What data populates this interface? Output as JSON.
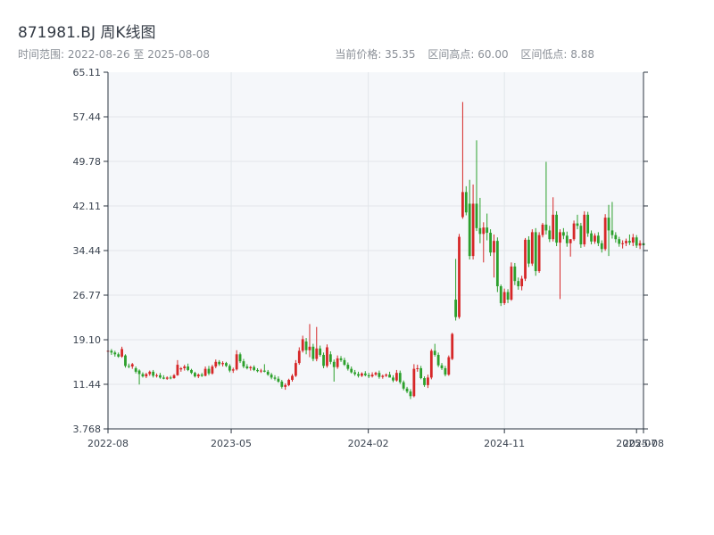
{
  "header": {
    "title": "871981.BJ 周K线图",
    "subtitle": "时间范围: 2022-08-26 至 2025-08-08",
    "current_price": "当前价格: 35.35",
    "range_high": "区间高点: 60.00",
    "range_low": "区间低点: 8.88"
  },
  "colors": {
    "up": "#d62728",
    "down": "#2ca02c",
    "plot_bg": "#f5f7fa",
    "grid": "#e2e6ea",
    "axis": "#2b3440"
  },
  "chart_data": {
    "type": "candlestick",
    "title": "871981.BJ 周K线图",
    "grid": true,
    "y_ticks": [
      "3.768",
      "11.44",
      "19.10",
      "26.77",
      "34.44",
      "42.11",
      "49.78",
      "57.44",
      "65.11"
    ],
    "ylim": [
      3.768,
      65.11
    ],
    "x_ticks": [
      "2022-08",
      "2023-05",
      "2024-02",
      "2024-11",
      "2025-07",
      "2025-08"
    ],
    "xlim": [
      "2022-08-26",
      "2025-08-08"
    ],
    "x_tick_dates": [
      "2022-08-26",
      "2023-05-01",
      "2024-02-01",
      "2024-11-01",
      "2025-07-25",
      "2025-08-08"
    ],
    "candles": [
      [
        "2022-08-26",
        17.2,
        17.6,
        16.8,
        17.2
      ],
      [
        "2022-09-02",
        17.2,
        17.5,
        16.5,
        16.9
      ],
      [
        "2022-09-09",
        16.9,
        17.2,
        16.2,
        16.6
      ],
      [
        "2022-09-16",
        16.6,
        16.9,
        16.0,
        16.2
      ],
      [
        "2022-09-23",
        16.2,
        17.9,
        16.0,
        17.5
      ],
      [
        "2022-09-30",
        16.4,
        16.6,
        14.3,
        14.6
      ],
      [
        "2022-10-07",
        14.6,
        15.0,
        14.2,
        14.5
      ],
      [
        "2022-10-14",
        14.5,
        15.1,
        14.1,
        14.9
      ],
      [
        "2022-10-21",
        14.2,
        14.5,
        13.3,
        13.6
      ],
      [
        "2022-10-28",
        13.8,
        14.0,
        11.4,
        13.2
      ],
      [
        "2022-11-04",
        13.2,
        13.5,
        12.6,
        12.8
      ],
      [
        "2022-11-11",
        12.8,
        13.4,
        12.5,
        13.2
      ],
      [
        "2022-11-18",
        13.2,
        13.8,
        12.9,
        13.6
      ],
      [
        "2022-11-25",
        13.6,
        13.9,
        12.6,
        12.9
      ],
      [
        "2022-12-02",
        12.9,
        13.3,
        12.6,
        13.0
      ],
      [
        "2022-12-09",
        13.0,
        13.4,
        12.4,
        12.6
      ],
      [
        "2022-12-16",
        12.6,
        13.0,
        12.3,
        12.4
      ],
      [
        "2022-12-23",
        12.4,
        12.8,
        12.2,
        12.6
      ],
      [
        "2022-12-30",
        12.6,
        12.9,
        12.3,
        12.5
      ],
      [
        "2023-01-06",
        12.5,
        13.2,
        12.4,
        13.0
      ],
      [
        "2023-01-13",
        13.0,
        15.6,
        12.9,
        14.8
      ],
      [
        "2023-01-20",
        14.0,
        14.4,
        13.6,
        14.2
      ],
      [
        "2023-01-27",
        14.2,
        14.8,
        13.8,
        14.5
      ],
      [
        "2023-02-03",
        14.5,
        15.0,
        13.7,
        13.9
      ],
      [
        "2023-02-10",
        13.9,
        14.1,
        13.2,
        13.4
      ],
      [
        "2023-02-17",
        13.4,
        13.6,
        12.6,
        12.8
      ],
      [
        "2023-02-24",
        12.8,
        13.3,
        12.5,
        13.1
      ],
      [
        "2023-03-03",
        13.1,
        13.4,
        12.7,
        12.9
      ],
      [
        "2023-03-10",
        12.9,
        14.5,
        12.8,
        14.1
      ],
      [
        "2023-03-17",
        14.1,
        14.6,
        13.0,
        13.3
      ],
      [
        "2023-03-24",
        13.3,
        14.8,
        13.1,
        14.5
      ],
      [
        "2023-03-31",
        14.5,
        15.7,
        14.2,
        15.3
      ],
      [
        "2023-04-07",
        15.3,
        15.6,
        14.6,
        14.9
      ],
      [
        "2023-04-14",
        14.9,
        15.4,
        14.5,
        15.1
      ],
      [
        "2023-04-21",
        15.1,
        15.3,
        14.4,
        14.6
      ],
      [
        "2023-04-28",
        14.6,
        14.9,
        13.5,
        13.8
      ],
      [
        "2023-05-05",
        13.8,
        14.3,
        13.4,
        14.0
      ],
      [
        "2023-05-12",
        14.0,
        17.3,
        13.8,
        16.6
      ],
      [
        "2023-05-19",
        16.6,
        16.9,
        15.1,
        15.4
      ],
      [
        "2023-05-26",
        15.4,
        15.8,
        14.2,
        14.5
      ],
      [
        "2023-06-02",
        14.5,
        14.9,
        14.0,
        14.2
      ],
      [
        "2023-06-09",
        14.2,
        14.6,
        13.8,
        14.4
      ],
      [
        "2023-06-16",
        14.4,
        14.7,
        13.7,
        13.9
      ],
      [
        "2023-06-23",
        13.9,
        14.2,
        13.5,
        13.7
      ],
      [
        "2023-06-30",
        13.7,
        14.1,
        13.4,
        13.8
      ],
      [
        "2023-07-07",
        13.8,
        14.9,
        13.5,
        13.6
      ],
      [
        "2023-07-14",
        13.6,
        13.9,
        12.9,
        13.1
      ],
      [
        "2023-07-21",
        13.1,
        13.4,
        12.3,
        12.6
      ],
      [
        "2023-07-28",
        12.6,
        13.0,
        12.1,
        12.4
      ],
      [
        "2023-08-04",
        12.4,
        12.8,
        11.7,
        11.9
      ],
      [
        "2023-08-11",
        11.9,
        12.2,
        10.7,
        11.0
      ],
      [
        "2023-08-18",
        11.0,
        11.6,
        10.5,
        11.3
      ],
      [
        "2023-08-25",
        11.3,
        12.4,
        11.1,
        12.2
      ],
      [
        "2023-09-01",
        12.2,
        13.2,
        11.9,
        12.9
      ],
      [
        "2023-09-08",
        12.9,
        15.6,
        12.7,
        15.1
      ],
      [
        "2023-09-15",
        15.1,
        17.8,
        14.8,
        17.2
      ],
      [
        "2023-09-22",
        17.2,
        19.8,
        16.9,
        19.2
      ],
      [
        "2023-09-29",
        18.8,
        19.4,
        16.6,
        17.3
      ],
      [
        "2023-10-06",
        17.3,
        21.8,
        16.1,
        17.9
      ],
      [
        "2023-10-13",
        17.9,
        18.4,
        15.4,
        15.8
      ],
      [
        "2023-10-20",
        15.8,
        21.3,
        15.4,
        17.6
      ],
      [
        "2023-10-27",
        17.6,
        18.1,
        16.2,
        16.5
      ],
      [
        "2023-11-03",
        16.5,
        16.9,
        14.2,
        14.6
      ],
      [
        "2023-11-10",
        14.6,
        18.3,
        14.3,
        17.8
      ],
      [
        "2023-11-17",
        16.6,
        17.1,
        14.9,
        15.3
      ],
      [
        "2023-11-24",
        15.3,
        15.7,
        11.9,
        14.4
      ],
      [
        "2023-12-01",
        14.4,
        16.4,
        14.1,
        15.9
      ],
      [
        "2023-12-08",
        15.9,
        16.3,
        15.3,
        15.6
      ],
      [
        "2023-12-15",
        15.6,
        16.0,
        14.6,
        14.8
      ],
      [
        "2023-12-22",
        14.8,
        15.2,
        13.8,
        14.1
      ],
      [
        "2023-12-29",
        14.1,
        14.5,
        13.3,
        13.5
      ],
      [
        "2024-01-05",
        13.5,
        13.9,
        12.9,
        13.2
      ],
      [
        "2024-01-12",
        13.2,
        13.6,
        12.6,
        12.9
      ],
      [
        "2024-01-19",
        12.9,
        13.5,
        12.7,
        13.3
      ],
      [
        "2024-01-26",
        13.3,
        13.7,
        12.8,
        13.0
      ],
      [
        "2024-02-02",
        13.0,
        13.4,
        12.5,
        12.8
      ],
      [
        "2024-02-09",
        12.8,
        13.5,
        12.6,
        13.1
      ],
      [
        "2024-02-16",
        13.1,
        13.6,
        12.9,
        13.4
      ],
      [
        "2024-02-23",
        13.4,
        13.8,
        12.4,
        12.7
      ],
      [
        "2024-03-01",
        12.7,
        13.1,
        12.4,
        12.9
      ],
      [
        "2024-03-08",
        12.9,
        13.3,
        12.7,
        13.1
      ],
      [
        "2024-03-15",
        13.1,
        13.6,
        12.8,
        12.6
      ],
      [
        "2024-03-22",
        12.6,
        13.0,
        11.8,
        12.1
      ],
      [
        "2024-03-29",
        12.1,
        13.9,
        11.9,
        13.4
      ],
      [
        "2024-04-05",
        13.4,
        13.8,
        11.5,
        11.8
      ],
      [
        "2024-04-12",
        11.8,
        12.1,
        10.4,
        10.7
      ],
      [
        "2024-04-19",
        10.7,
        11.0,
        9.9,
        10.2
      ],
      [
        "2024-04-26",
        10.2,
        10.6,
        8.9,
        9.4
      ],
      [
        "2024-05-03",
        9.4,
        14.9,
        9.2,
        14.1
      ],
      [
        "2024-05-10",
        14.1,
        14.8,
        13.6,
        14.2
      ],
      [
        "2024-05-17",
        14.2,
        14.6,
        12.3,
        12.5
      ],
      [
        "2024-05-24",
        12.5,
        12.8,
        11.0,
        11.3
      ],
      [
        "2024-05-31",
        11.3,
        13.1,
        10.8,
        12.6
      ],
      [
        "2024-06-07",
        12.6,
        17.5,
        12.3,
        17.2
      ],
      [
        "2024-06-14",
        17.2,
        18.4,
        16.2,
        16.5
      ],
      [
        "2024-06-21",
        16.5,
        16.9,
        14.4,
        14.7
      ],
      [
        "2024-06-28",
        14.7,
        15.1,
        13.9,
        14.2
      ],
      [
        "2024-07-05",
        14.2,
        14.6,
        12.8,
        13.1
      ],
      [
        "2024-07-12",
        13.1,
        16.4,
        12.9,
        16.1
      ],
      [
        "2024-07-19",
        15.8,
        20.3,
        15.6,
        20.1
      ],
      [
        "2024-07-26",
        26.0,
        33.0,
        22.4,
        23.0
      ],
      [
        "2024-08-02",
        23.0,
        37.3,
        22.7,
        36.8
      ],
      [
        "2024-08-09",
        40.2,
        60.0,
        39.9,
        44.5
      ],
      [
        "2024-08-16",
        44.5,
        45.5,
        40.5,
        41.0
      ],
      [
        "2024-08-23",
        42.5,
        46.6,
        32.9,
        33.5
      ],
      [
        "2024-08-30",
        33.5,
        45.8,
        32.9,
        42.5
      ],
      [
        "2024-09-06",
        42.5,
        53.4,
        37.8,
        38.3
      ],
      [
        "2024-09-13",
        38.3,
        43.5,
        35.7,
        37.3
      ],
      [
        "2024-09-20",
        37.3,
        39.3,
        32.4,
        38.4
      ],
      [
        "2024-09-27",
        38.4,
        40.8,
        36.2,
        37.5
      ],
      [
        "2024-10-04",
        37.5,
        38.1,
        33.5,
        34.1
      ],
      [
        "2024-10-11",
        34.1,
        37.2,
        29.8,
        36.1
      ],
      [
        "2024-10-18",
        36.1,
        36.7,
        27.3,
        28.3
      ],
      [
        "2024-10-25",
        28.3,
        28.6,
        24.9,
        25.4
      ],
      [
        "2024-11-01",
        25.4,
        27.9,
        25.1,
        27.3
      ],
      [
        "2024-11-08",
        27.3,
        27.8,
        25.4,
        26.0
      ],
      [
        "2024-11-15",
        26.0,
        32.4,
        25.8,
        31.7
      ],
      [
        "2024-11-22",
        31.7,
        32.3,
        28.5,
        29.2
      ],
      [
        "2024-11-29",
        29.2,
        29.8,
        27.7,
        28.3
      ],
      [
        "2024-12-06",
        28.3,
        30.1,
        27.6,
        29.6
      ],
      [
        "2024-12-13",
        29.6,
        36.6,
        29.2,
        36.3
      ],
      [
        "2024-12-20",
        36.3,
        36.9,
        31.6,
        32.2
      ],
      [
        "2024-12-27",
        32.2,
        38.1,
        31.8,
        37.6
      ],
      [
        "2025-01-03",
        37.6,
        38.3,
        30.1,
        30.9
      ],
      [
        "2025-01-10",
        30.9,
        37.6,
        30.6,
        37.1
      ],
      [
        "2025-01-17",
        37.1,
        39.2,
        36.7,
        38.9
      ],
      [
        "2025-01-24",
        38.9,
        49.7,
        37.2,
        37.9
      ],
      [
        "2025-01-31",
        37.9,
        38.7,
        35.9,
        36.4
      ],
      [
        "2025-02-07",
        36.4,
        43.6,
        36.0,
        40.6
      ],
      [
        "2025-02-14",
        40.6,
        41.2,
        35.2,
        35.8
      ],
      [
        "2025-02-21",
        35.8,
        38.1,
        26.1,
        37.6
      ],
      [
        "2025-02-28",
        37.6,
        38.3,
        36.4,
        37.0
      ],
      [
        "2025-03-07",
        37.0,
        37.7,
        35.1,
        35.7
      ],
      [
        "2025-03-14",
        35.7,
        36.4,
        33.4,
        36.4
      ],
      [
        "2025-03-21",
        36.4,
        39.6,
        36.1,
        39.1
      ],
      [
        "2025-03-28",
        39.1,
        40.6,
        38.1,
        38.7
      ],
      [
        "2025-04-04",
        38.7,
        39.2,
        34.9,
        35.5
      ],
      [
        "2025-04-11",
        35.5,
        41.2,
        35.1,
        40.6
      ],
      [
        "2025-04-18",
        40.6,
        41.1,
        36.8,
        37.4
      ],
      [
        "2025-04-25",
        37.4,
        37.9,
        35.5,
        36.0
      ],
      [
        "2025-05-02",
        36.0,
        37.4,
        35.6,
        37.0
      ],
      [
        "2025-05-09",
        37.0,
        37.6,
        35.2,
        35.7
      ],
      [
        "2025-05-16",
        35.7,
        36.2,
        34.1,
        34.7
      ],
      [
        "2025-05-23",
        34.7,
        40.7,
        34.4,
        40.1
      ],
      [
        "2025-05-30",
        40.1,
        42.3,
        33.5,
        37.9
      ],
      [
        "2025-06-06",
        37.9,
        42.8,
        36.5,
        37.1
      ],
      [
        "2025-06-13",
        37.1,
        37.6,
        35.8,
        36.4
      ],
      [
        "2025-06-20",
        36.4,
        36.8,
        35.1,
        35.6
      ],
      [
        "2025-06-27",
        35.6,
        36.2,
        34.8,
        35.7
      ],
      [
        "2025-07-04",
        35.7,
        36.5,
        35.2,
        36.1
      ],
      [
        "2025-07-11",
        36.1,
        37.2,
        35.4,
        35.8
      ],
      [
        "2025-07-18",
        35.8,
        37.3,
        35.2,
        36.7
      ],
      [
        "2025-07-25",
        36.7,
        37.1,
        34.9,
        35.3
      ],
      [
        "2025-08-01",
        35.3,
        36.2,
        34.7,
        35.7
      ],
      [
        "2025-08-08",
        35.7,
        36.1,
        34.9,
        35.35
      ]
    ]
  }
}
